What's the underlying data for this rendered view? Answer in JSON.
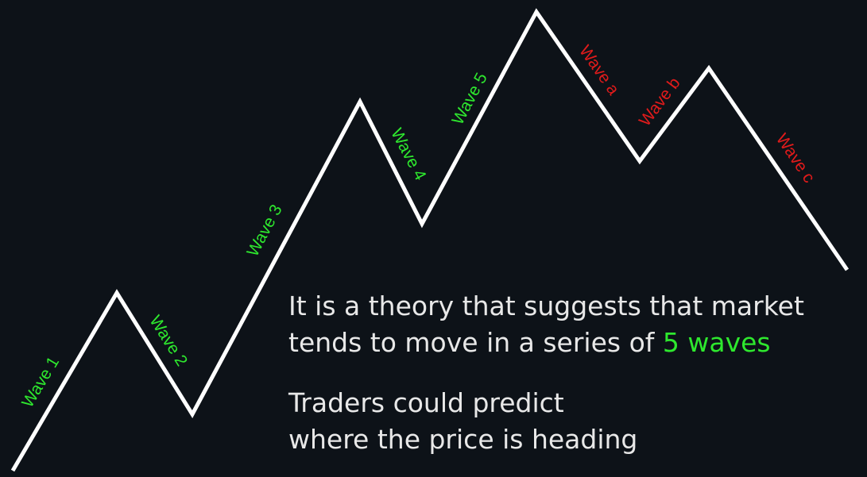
{
  "colors": {
    "background": "#0d1218",
    "line": "#ffffff",
    "impulse_label": "#2ee82e",
    "corrective_label": "#e01b1b",
    "text": "#e8e8e8",
    "highlight": "#2ee82e"
  },
  "waves": [
    {
      "id": "wave-1",
      "label": "Wave 1",
      "type": "impulse"
    },
    {
      "id": "wave-2",
      "label": "Wave 2",
      "type": "impulse"
    },
    {
      "id": "wave-3",
      "label": "Wave 3",
      "type": "impulse"
    },
    {
      "id": "wave-4",
      "label": "Wave 4",
      "type": "impulse"
    },
    {
      "id": "wave-5",
      "label": "Wave 5",
      "type": "impulse"
    },
    {
      "id": "wave-a",
      "label": "Wave a",
      "type": "corrective"
    },
    {
      "id": "wave-b",
      "label": "Wave b",
      "type": "corrective"
    },
    {
      "id": "wave-c",
      "label": "Wave c",
      "type": "corrective"
    }
  ],
  "caption": {
    "line1": "It is a theory that suggests that market",
    "line2_prefix": "tends to move in a series of ",
    "line2_highlight": "5 waves",
    "line3": "Traders could predict",
    "line4": "where the price is heading"
  }
}
